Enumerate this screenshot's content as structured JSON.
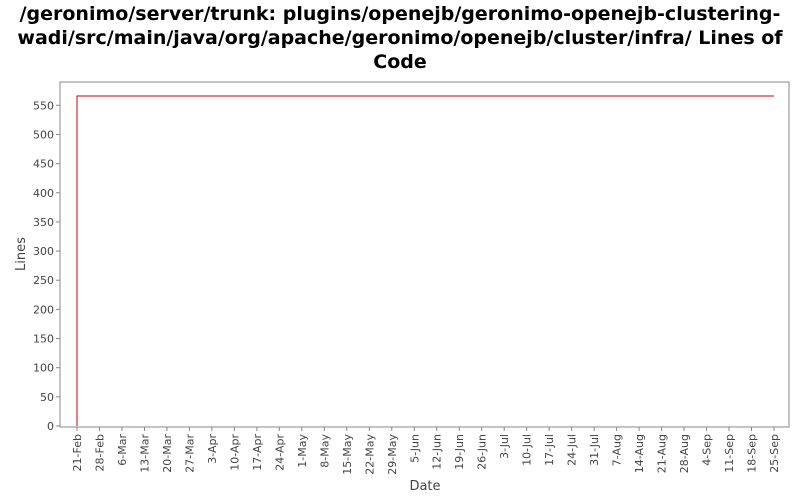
{
  "title_lines": [
    "/geronimo/server/trunk: plugins/openejb/geronimo-openejb-clustering-",
    "wadi/src/main/java/org/apache/geronimo/openejb/cluster/infra/ Lines of",
    "Code"
  ],
  "chart_data": {
    "type": "line",
    "title": "/geronimo/server/trunk: plugins/openejb/geronimo-openejb-clustering-wadi/src/main/java/org/apache/geronimo/openejb/cluster/infra/ Lines of Code",
    "xlabel": "Date",
    "ylabel": "Lines",
    "ylim": [
      0,
      590
    ],
    "y_ticks": [
      0,
      50,
      100,
      150,
      200,
      250,
      300,
      350,
      400,
      450,
      500,
      550
    ],
    "x_tick_labels": [
      "21-Feb",
      "28-Feb",
      "6-Mar",
      "13-Mar",
      "20-Mar",
      "27-Mar",
      "3-Apr",
      "10-Apr",
      "17-Apr",
      "24-Apr",
      "1-May",
      "8-May",
      "15-May",
      "22-May",
      "29-May",
      "5-Jun",
      "12-Jun",
      "19-Jun",
      "26-Jun",
      "3-Jul",
      "10-Jul",
      "17-Jul",
      "24-Jul",
      "31-Jul",
      "7-Aug",
      "14-Aug",
      "21-Aug",
      "28-Aug",
      "4-Sep",
      "11-Sep",
      "18-Sep",
      "25-Sep"
    ],
    "grid": false,
    "legend": "none",
    "series": [
      {
        "color": "#cc0000",
        "points": [
          {
            "x": "21-Feb",
            "y": 0
          },
          {
            "x": "21-Feb",
            "y": 566
          },
          {
            "x": "25-Sep",
            "y": 566
          }
        ]
      }
    ]
  }
}
